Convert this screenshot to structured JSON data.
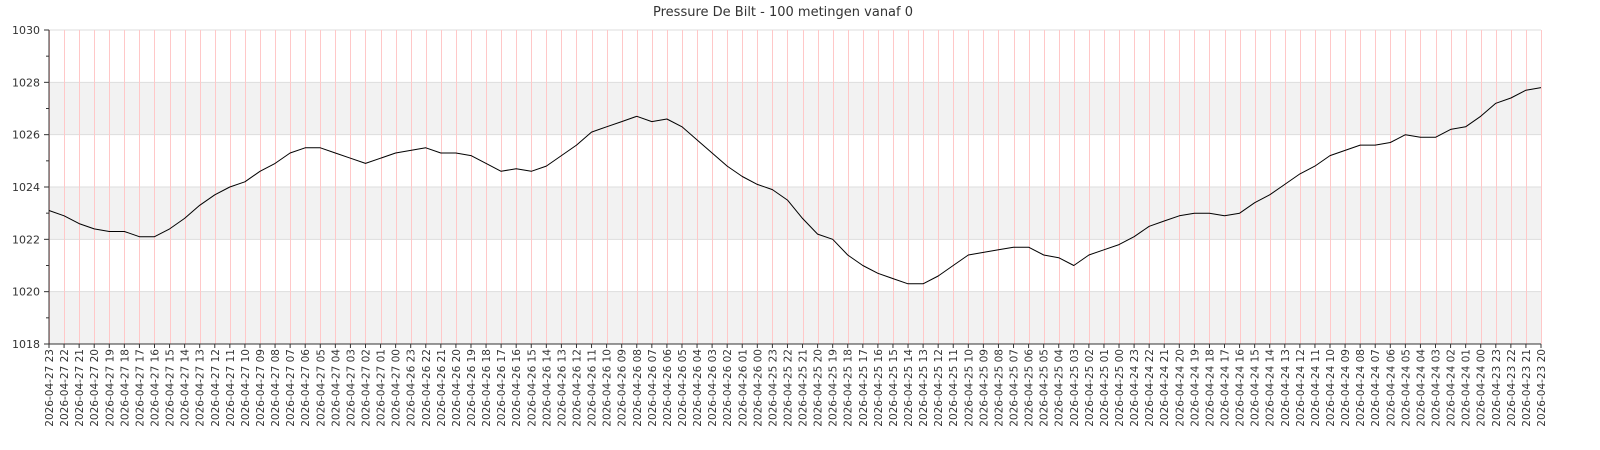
{
  "chart_data": {
    "type": "line",
    "title": "Pressure De Bilt - 100 metingen vanaf 0",
    "xlabel": "",
    "ylabel": "",
    "ylim": [
      1018,
      1030
    ],
    "yticks": [
      1018,
      1020,
      1022,
      1024,
      1026,
      1028,
      1030
    ],
    "grid": true,
    "legend": "none",
    "colors": {
      "line": "#000000",
      "band": "#f2f2f2",
      "vgrid": "#ffc8c8",
      "hgrid": "#dddddd",
      "axis": "#333333"
    },
    "x": [
      "2026-04-27 23",
      "2026-04-27 22",
      "2026-04-27 21",
      "2026-04-27 20",
      "2026-04-27 19",
      "2026-04-27 18",
      "2026-04-27 17",
      "2026-04-27 16",
      "2026-04-27 15",
      "2026-04-27 14",
      "2026-04-27 13",
      "2026-04-27 12",
      "2026-04-27 11",
      "2026-04-27 10",
      "2026-04-27 09",
      "2026-04-27 08",
      "2026-04-27 07",
      "2026-04-27 06",
      "2026-04-27 05",
      "2026-04-27 04",
      "2026-04-27 03",
      "2026-04-27 02",
      "2026-04-27 01",
      "2026-04-27 00",
      "2026-04-26 23",
      "2026-04-26 22",
      "2026-04-26 21",
      "2026-04-26 20",
      "2026-04-26 19",
      "2026-04-26 18",
      "2026-04-26 17",
      "2026-04-26 16",
      "2026-04-26 15",
      "2026-04-26 14",
      "2026-04-26 13",
      "2026-04-26 12",
      "2026-04-26 11",
      "2026-04-26 10",
      "2026-04-26 09",
      "2026-04-26 08",
      "2026-04-26 07",
      "2026-04-26 06",
      "2026-04-26 05",
      "2026-04-26 04",
      "2026-04-26 03",
      "2026-04-26 02",
      "2026-04-26 01",
      "2026-04-26 00",
      "2026-04-25 23",
      "2026-04-25 22",
      "2026-04-25 21",
      "2026-04-25 20",
      "2026-04-25 19",
      "2026-04-25 18",
      "2026-04-25 17",
      "2026-04-25 16",
      "2026-04-25 15",
      "2026-04-25 14",
      "2026-04-25 13",
      "2026-04-25 12",
      "2026-04-25 11",
      "2026-04-25 10",
      "2026-04-25 09",
      "2026-04-25 08",
      "2026-04-25 07",
      "2026-04-25 06",
      "2026-04-25 05",
      "2026-04-25 04",
      "2026-04-25 03",
      "2026-04-25 02",
      "2026-04-25 01",
      "2026-04-25 00",
      "2026-04-24 23",
      "2026-04-24 22",
      "2026-04-24 21",
      "2026-04-24 20",
      "2026-04-24 19",
      "2026-04-24 18",
      "2026-04-24 17",
      "2026-04-24 16",
      "2026-04-24 15",
      "2026-04-24 14",
      "2026-04-24 13",
      "2026-04-24 12",
      "2026-04-24 11",
      "2026-04-24 10",
      "2026-04-24 09",
      "2026-04-24 08",
      "2026-04-24 07",
      "2026-04-24 06",
      "2026-04-24 05",
      "2026-04-24 04",
      "2026-04-24 03",
      "2026-04-24 02",
      "2026-04-24 01",
      "2026-04-24 00",
      "2026-04-23 23",
      "2026-04-23 22",
      "2026-04-23 21",
      "2026-04-23 20"
    ],
    "series": [
      {
        "values": [
          1023.1,
          1022.9,
          1022.6,
          1022.4,
          1022.3,
          1022.3,
          1022.1,
          1022.1,
          1022.4,
          1022.8,
          1023.3,
          1023.7,
          1024.0,
          1024.2,
          1024.6,
          1024.9,
          1025.3,
          1025.5,
          1025.5,
          1025.3,
          1025.1,
          1024.9,
          1025.1,
          1025.3,
          1025.4,
          1025.5,
          1025.3,
          1025.3,
          1025.2,
          1024.9,
          1024.6,
          1024.7,
          1024.6,
          1024.8,
          1025.2,
          1025.6,
          1026.1,
          1026.3,
          1026.5,
          1026.7,
          1026.5,
          1026.6,
          1026.3,
          1025.8,
          1025.3,
          1024.8,
          1024.4,
          1024.1,
          1023.9,
          1023.5,
          1022.8,
          1022.2,
          1022.0,
          1021.4,
          1021.0,
          1020.7,
          1020.5,
          1020.3,
          1020.3,
          1020.6,
          1021.0,
          1021.4,
          1021.5,
          1021.6,
          1021.7,
          1021.7,
          1021.4,
          1021.3,
          1021.0,
          1021.4,
          1021.6,
          1021.8,
          1022.1,
          1022.5,
          1022.7,
          1022.9,
          1023.0,
          1023.0,
          1022.9,
          1023.0,
          1023.4,
          1023.7,
          1024.1,
          1024.5,
          1024.8,
          1025.2,
          1025.4,
          1025.6,
          1025.6,
          1025.7,
          1026.0,
          1025.9,
          1025.9,
          1026.2,
          1026.3,
          1026.7,
          1027.2,
          1027.4,
          1027.7,
          1027.8
        ]
      }
    ]
  }
}
